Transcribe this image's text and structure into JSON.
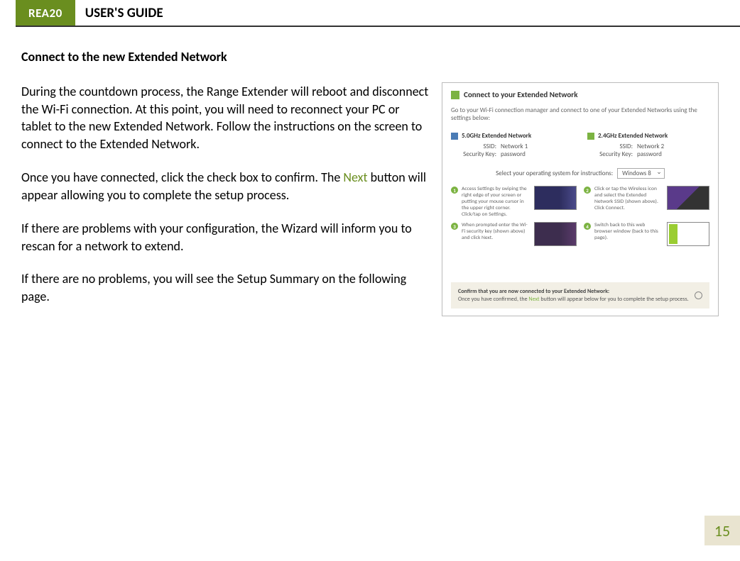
{
  "header": {
    "product": "REA20",
    "title": "USER'S GUIDE"
  },
  "section": {
    "heading": "Connect to the new Extended Network",
    "para1": "During the countdown process, the Range Extender will reboot and disconnect the Wi-Fi connection. At this point, you will need to reconnect your PC or tablet to the new Extended Network. Follow the instructions on the screen to connect to the Extended Network.",
    "para2_pre": "Once you have connected, click the check box to confirm. The ",
    "para2_next": "Next",
    "para2_post": " button will appear allowing you to complete the setup process.",
    "para3": "If there are problems with your configuration, the Wizard will inform you to rescan for a network to extend.",
    "para4": "If there are no problems, you will see the Setup Summary on the following page."
  },
  "screenshot": {
    "title": "Connect to your Extended Network",
    "subtitle": "Go to your Wi-Fi connection manager and connect to one of your Extended Networks using the settings below:",
    "net5": {
      "name": "5.0GHz Extended Network",
      "ssid_label": "SSID:",
      "ssid_value": "Network 1",
      "key_label": "Security Key:",
      "key_value": "password"
    },
    "net24": {
      "name": "2.4GHz Extended Network",
      "ssid_label": "SSID:",
      "ssid_value": "Network 2",
      "key_label": "Security Key:",
      "key_value": "password"
    },
    "os_label": "Select your operating system for instructions:",
    "os_value": "Windows 8",
    "step1": "Access Settings by swiping the right edge of your screen or putting your mouse cursor in the upper right corner. Click/tap on Settings.",
    "step2": "Click or tap the Wireless icon and select the Extended Network SSID (shown above). Click Connect.",
    "step3": "When prompted enter the Wi-Fi security key (shown above) and click Next.",
    "step4": "Switch back to this web browser window (back to this page).",
    "confirm_bold": "Confirm that you are now connected to your Extended Network:",
    "confirm_rest_a": "Once you have confirmed, the ",
    "confirm_next": "Next",
    "confirm_rest_b": " button will appear below for you to complete the setup process."
  },
  "page_number": "15",
  "colors": {
    "accent_green": "#6a8e1f",
    "light_green": "#7cb342",
    "footer_bg": "#e9e4d0",
    "blue": "#4a7bb5"
  }
}
